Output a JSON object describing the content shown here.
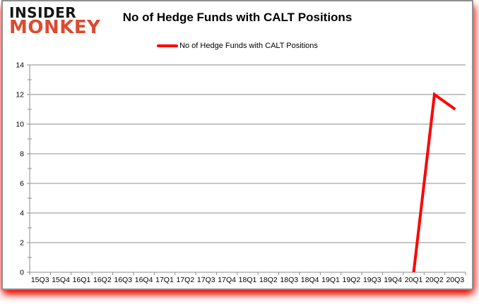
{
  "logo": {
    "line1": "INSIDER",
    "line2": "MONKEY",
    "color_line1": "#151515",
    "color_line2": "#dd4a31"
  },
  "chart_data": {
    "type": "line",
    "title": "No of Hedge Funds with CALT Positions",
    "xlabel": "",
    "ylabel": "",
    "categories": [
      "15Q3",
      "15Q4",
      "16Q1",
      "16Q2",
      "16Q3",
      "16Q4",
      "17Q1",
      "17Q2",
      "17Q3",
      "17Q4",
      "18Q1",
      "18Q2",
      "18Q3",
      "18Q4",
      "19Q1",
      "19Q2",
      "19Q3",
      "19Q4",
      "20Q1",
      "20Q2",
      "20Q3"
    ],
    "series": [
      {
        "name": "No of Hedge Funds with CALT Positions",
        "color": "#ff0000",
        "values": [
          null,
          null,
          null,
          null,
          null,
          null,
          null,
          null,
          null,
          null,
          null,
          null,
          null,
          null,
          null,
          null,
          null,
          null,
          0,
          12,
          11
        ]
      }
    ],
    "ylim": [
      0,
      14
    ],
    "y_ticks": [
      0,
      2,
      4,
      6,
      8,
      10,
      12,
      14
    ],
    "y_minor_step": 1,
    "grid": true,
    "legend_position": "top",
    "colors": {
      "grid": "#8e8e8e",
      "axis": "#8e8e8e",
      "tick_label": "#000000"
    }
  }
}
